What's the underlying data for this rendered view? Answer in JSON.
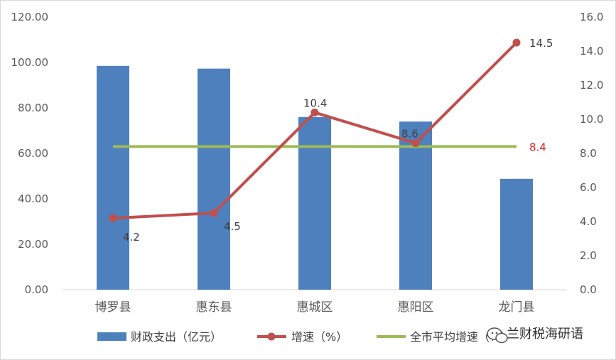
{
  "chart_data": {
    "type": "bar",
    "categories": [
      "博罗县",
      "惠东县",
      "惠城区",
      "惠阳区",
      "龙门县"
    ],
    "series": [
      {
        "name": "财政支出（亿元）",
        "type": "bar",
        "axis": "left",
        "color": "#4e80bd",
        "values": [
          98.5,
          97.3,
          76.0,
          74.0,
          48.8
        ]
      },
      {
        "name": "增速（%）",
        "type": "line",
        "axis": "right",
        "color": "#c0504d",
        "values": [
          4.2,
          4.5,
          10.4,
          8.6,
          14.5
        ],
        "labels": [
          "4.2",
          "4.5",
          "10.4",
          "8.6",
          "14.5"
        ]
      },
      {
        "name": "全市平均增速（%）",
        "type": "line",
        "axis": "right",
        "color": "#9bbb59",
        "values": [
          8.4,
          8.4,
          8.4,
          8.4,
          8.4
        ],
        "label": "8.4",
        "label_color": "#e02020"
      }
    ],
    "y_left": {
      "ylim": [
        0,
        120
      ],
      "ticks": [
        "0.00",
        "20.00",
        "40.00",
        "60.00",
        "80.00",
        "100.00",
        "120.00"
      ]
    },
    "y_right": {
      "ylim": [
        0,
        16
      ],
      "ticks": [
        "0.0",
        "2.0",
        "4.0",
        "6.0",
        "8.0",
        "10.0",
        "12.0",
        "14.0",
        "16.0"
      ]
    },
    "grid": false,
    "legend_position": "bottom"
  },
  "watermark": {
    "text": "兰财税海研语",
    "icon": "wechat-icon"
  }
}
